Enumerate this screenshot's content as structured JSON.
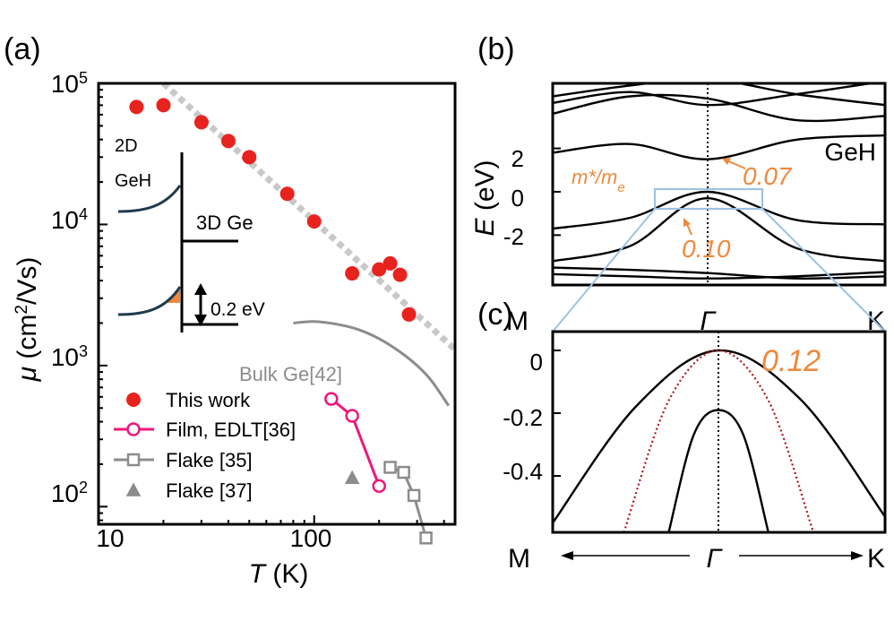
{
  "panels": {
    "a": {
      "label": "(a)"
    },
    "b": {
      "label": "(b)"
    },
    "c": {
      "label": "(c)"
    }
  },
  "colors": {
    "this_work": "#e8231e",
    "film": "#f0177a",
    "flake": "#8c8c8c",
    "bulk": "#8c8c8c",
    "fit": "#c8c8c8",
    "orange": "#f0893c",
    "inset_band": "#1f3b4d",
    "zoom_box": "#9ec2e3",
    "dotted_red": "#b0141e"
  },
  "chart_data": [
    {
      "panel": "a",
      "type": "scatter",
      "xscale": "log",
      "yscale": "log",
      "xlim": [
        10,
        450
      ],
      "ylim": [
        75,
        100000
      ],
      "xticks": [
        10,
        100
      ],
      "xticklabels": [
        "10",
        "100"
      ],
      "yticks": [
        100,
        1000,
        10000,
        100000
      ],
      "yticklabels": [
        {
          "base": "10",
          "exp": "2"
        },
        {
          "base": "10",
          "exp": "3"
        },
        {
          "base": "10",
          "exp": "4"
        },
        {
          "base": "10",
          "exp": "5"
        }
      ],
      "xlabel": {
        "var": "T",
        "unit": " (K)"
      },
      "ylabel": {
        "var": "μ",
        "pre": " (cm",
        "sup": "2",
        "post": "/Vs)"
      },
      "series": [
        {
          "name": "This work",
          "marker": "filled-circle",
          "x": [
            15,
            20,
            30,
            40,
            50,
            75,
            100,
            150,
            200,
            225,
            250,
            275
          ],
          "y": [
            68000,
            70000,
            53000,
            39000,
            30000,
            16500,
            10500,
            4500,
            4800,
            5300,
            4400,
            2300
          ]
        },
        {
          "name": "Film, EDLT[36]",
          "marker": "open-circle",
          "x": [
            120,
            150,
            200
          ],
          "y": [
            580,
            440,
            140
          ]
        },
        {
          "name": "Flake [35]",
          "marker": "open-square",
          "x": [
            225,
            260,
            290,
            330
          ],
          "y": [
            190,
            175,
            120,
            60
          ]
        },
        {
          "name": "Flake [37]",
          "marker": "open-triangle",
          "x": [
            150
          ],
          "y": [
            160
          ]
        }
      ],
      "bulk_curve": {
        "label": "Bulk Ge[42]",
        "x": [
          80,
          100,
          130,
          160,
          200,
          250,
          300,
          350,
          420
        ],
        "y": [
          2000,
          2050,
          1950,
          1800,
          1550,
          1250,
          1000,
          780,
          520
        ]
      },
      "fit_line": {
        "x": [
          20,
          450
        ],
        "y": [
          100000,
          1300
        ]
      },
      "inset": {
        "label_2d": [
          "2D",
          "GeH"
        ],
        "label_3d": "3D Ge",
        "gap_label": "0.2 eV"
      }
    },
    {
      "panel": "b",
      "type": "line",
      "material_label": "GeH",
      "ylim": [
        -4.3,
        5.0
      ],
      "yticks": [
        2,
        0,
        -2
      ],
      "yticklabels": [
        "2",
        "0",
        "-2"
      ],
      "xticklabels": [
        "M",
        "Γ",
        "K"
      ],
      "ylabel": {
        "var": "E",
        "unit": " (eV)"
      },
      "mass_label": {
        "pre": "m*/m",
        "sub": "e"
      },
      "effective_masses": [
        {
          "value": "0.07",
          "band": "conduction"
        },
        {
          "value": "0.10",
          "band": "valence"
        }
      ],
      "bands": [
        {
          "y": [
            -3.8,
            -3.9,
            -4.0,
            -3.9,
            -3.7
          ]
        },
        {
          "y": [
            -3.5,
            -3.6,
            -3.75,
            -4.0,
            -3.9
          ]
        },
        {
          "y": [
            -3.2,
            -2.5,
            -0.3,
            -2.6,
            -3.2
          ]
        },
        {
          "y": [
            -1.7,
            -1.2,
            0.0,
            -1.3,
            -1.5
          ]
        },
        {
          "y": [
            1.8,
            2.2,
            1.5,
            2.4,
            2.6
          ]
        },
        {
          "y": [
            3.6,
            4.4,
            4.3,
            3.3,
            3.5
          ]
        },
        {
          "y": [
            4.1,
            4.6,
            4.0,
            4.5,
            5.1
          ]
        },
        {
          "y": [
            4.4,
            4.9,
            5.2,
            4.5,
            4.0
          ]
        }
      ]
    },
    {
      "panel": "c",
      "type": "line",
      "ylim": [
        -0.58,
        0.06
      ],
      "yticks": [
        0,
        -0.2,
        -0.4
      ],
      "yticklabels": [
        "0",
        "-0.2",
        "-0.4"
      ],
      "xticklabels": [
        "M",
        "Γ",
        "K"
      ],
      "mass_label": "0.12",
      "bands": [
        {
          "style": "solid",
          "k": [
            -1,
            -0.5,
            0,
            0.5,
            1
          ],
          "y": [
            -0.55,
            -0.18,
            0.0,
            -0.16,
            -0.53
          ]
        },
        {
          "style": "solid",
          "k": [
            -0.3,
            -0.15,
            0,
            0.15,
            0.3
          ],
          "y": [
            -0.58,
            -0.27,
            -0.19,
            -0.27,
            -0.58
          ]
        },
        {
          "style": "dotted",
          "k": [
            -0.57,
            -0.3,
            0,
            0.3,
            0.57
          ],
          "y": [
            -0.58,
            -0.16,
            0.0,
            -0.16,
            -0.58
          ]
        }
      ]
    }
  ]
}
